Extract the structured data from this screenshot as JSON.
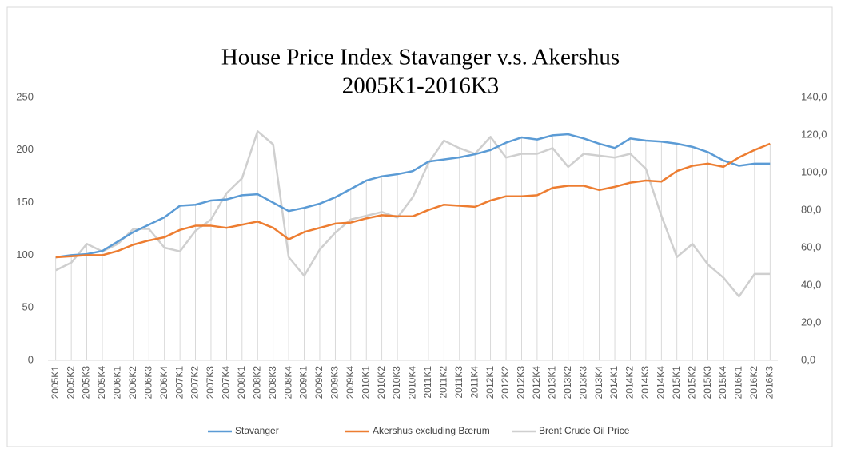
{
  "chart_data": {
    "type": "line",
    "title": [
      "House Price Index Stavanger v.s. Akershus",
      "2005K1-2016K3"
    ],
    "categories": [
      "2005K1",
      "2005K2",
      "2005K3",
      "2005K4",
      "2006K1",
      "2006K2",
      "2006K3",
      "2006K4",
      "2007K1",
      "2007K2",
      "2007K3",
      "2007K4",
      "2008K1",
      "2008K2",
      "2008K3",
      "2008K4",
      "2009K1",
      "2009K2",
      "2009K3",
      "2009K4",
      "2010K1",
      "2010K2",
      "2010K3",
      "2010K4",
      "2011K1",
      "2011K2",
      "2011K3",
      "2011K4",
      "2012K1",
      "2012K2",
      "2012K3",
      "2012K4",
      "2013K1",
      "2013K2",
      "2013K3",
      "2013K4",
      "2014K1",
      "2014K2",
      "2014K3",
      "2014K4",
      "2015K1",
      "2015K2",
      "2015K3",
      "2015K4",
      "2016K1",
      "2016K2",
      "2016K3"
    ],
    "series": [
      {
        "name": "Stavanger",
        "color": "#5b9bd5",
        "axis": "y",
        "values": [
          98,
          100,
          101,
          104,
          113,
          122,
          129,
          136,
          147,
          148,
          152,
          153,
          157,
          158,
          150,
          142,
          145,
          149,
          155,
          163,
          171,
          175,
          177,
          180,
          189,
          191,
          193,
          196,
          200,
          207,
          212,
          210,
          214,
          215,
          211,
          206,
          202,
          211,
          209,
          208,
          206,
          203,
          198,
          190,
          185,
          187,
          187
        ]
      },
      {
        "name": "Akershus excluding Bærum",
        "color": "#ed7d31",
        "axis": "y",
        "values": [
          98,
          99,
          100,
          100,
          104,
          110,
          114,
          117,
          124,
          128,
          128,
          126,
          129,
          132,
          126,
          115,
          122,
          126,
          130,
          131,
          135,
          138,
          137,
          137,
          143,
          148,
          147,
          146,
          152,
          156,
          156,
          157,
          164,
          166,
          166,
          162,
          165,
          169,
          171,
          170,
          180,
          185,
          187,
          184,
          193,
          200,
          206
        ]
      },
      {
        "name": "Brent Crude Oil Price",
        "color": "#cfcfcf",
        "axis": "y2",
        "values": [
          48,
          52,
          62,
          58,
          62,
          70,
          70,
          60,
          58,
          69,
          75,
          89,
          97,
          122,
          115,
          55,
          45,
          59,
          68,
          75,
          77,
          79,
          76,
          87,
          105,
          117,
          113,
          110,
          119,
          108,
          110,
          110,
          113,
          103,
          110,
          109,
          108,
          110,
          102,
          77,
          55,
          62,
          51,
          44,
          34,
          46,
          46
        ]
      }
    ],
    "ylim": [
      0,
      250
    ],
    "yticks": [
      0,
      50,
      100,
      150,
      200,
      250
    ],
    "y2lim": [
      0,
      140
    ],
    "y2ticks": [
      {
        "value": 0,
        "label": "0,0"
      },
      {
        "value": 20,
        "label": "20,0"
      },
      {
        "value": 40,
        "label": "40,0"
      },
      {
        "value": 60,
        "label": "60,0"
      },
      {
        "value": 80,
        "label": "80,0"
      },
      {
        "value": 100,
        "label": "100,0"
      },
      {
        "value": 120,
        "label": "120,0"
      },
      {
        "value": 140,
        "label": "140,0"
      }
    ],
    "legend": "bottom"
  }
}
